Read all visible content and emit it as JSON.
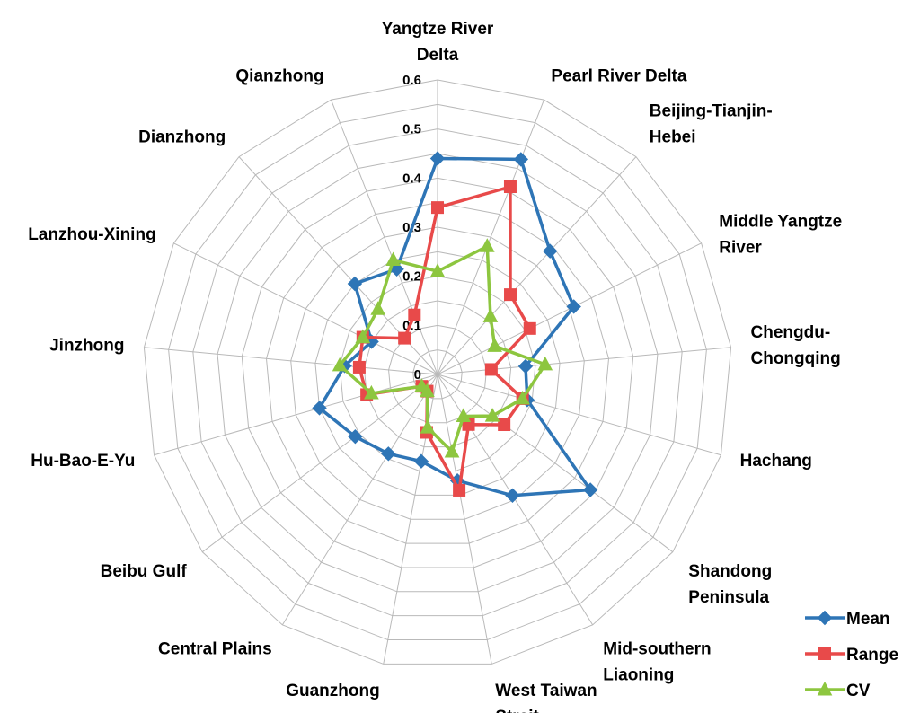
{
  "chart_data": {
    "type": "radar",
    "title": "",
    "categories": [
      "Yangtze River Delta",
      "Pearl River Delta",
      "Beijing-Tianjin-Hebei",
      "Middle Yangtze River",
      "Chengdu-Chongqing",
      "Hachang",
      "Shandong Peninsula",
      "Mid-southern Liaoning",
      "West Taiwan Strait",
      "Guanzhong",
      "Central Plains",
      "Beibu Gulf",
      "Hu-Bao-E-Yu",
      "Jinzhong",
      "Lanzhou-Xining",
      "Dianzhong",
      "Qianzhong"
    ],
    "category_label_lines": [
      [
        "Yangtze River",
        "Delta"
      ],
      [
        "Pearl River Delta"
      ],
      [
        "Beijing-Tianjin-",
        "Hebei"
      ],
      [
        "Middle Yangtze",
        "River"
      ],
      [
        "Chengdu-",
        "Chongqing"
      ],
      [
        "Hachang"
      ],
      [
        "Shandong",
        "Peninsula"
      ],
      [
        "Mid-southern",
        "Liaoning"
      ],
      [
        "West Taiwan",
        "Strait"
      ],
      [
        "Guanzhong"
      ],
      [
        "Central Plains"
      ],
      [
        "Beibu Gulf"
      ],
      [
        "Hu-Bao-E-Yu"
      ],
      [
        "Jinzhong"
      ],
      [
        "Lanzhou-Xining"
      ],
      [
        "Dianzhong"
      ],
      [
        "Qianzhong"
      ]
    ],
    "rlim": [
      0,
      0.6
    ],
    "ticks": [
      "0",
      "0.1",
      "0.2",
      "0.3",
      "0.4",
      "0.5",
      "0.6"
    ],
    "grid": true,
    "legend_position": "bottom-right",
    "series": [
      {
        "name": "Mean",
        "color": "#2E75B6",
        "marker": "diamond",
        "values": [
          0.44,
          0.47,
          0.34,
          0.31,
          0.18,
          0.19,
          0.39,
          0.29,
          0.22,
          0.18,
          0.19,
          0.21,
          0.25,
          0.19,
          0.15,
          0.25,
          0.23
        ]
      },
      {
        "name": "Range",
        "color": "#E84A4A",
        "marker": "square",
        "values": [
          0.34,
          0.41,
          0.22,
          0.21,
          0.11,
          0.18,
          0.17,
          0.12,
          0.24,
          0.12,
          0.04,
          0.04,
          0.15,
          0.16,
          0.17,
          0.1,
          0.13
        ]
      },
      {
        "name": "CV",
        "color": "#8DC63F",
        "marker": "triangle",
        "values": [
          0.21,
          0.28,
          0.16,
          0.13,
          0.22,
          0.18,
          0.14,
          0.1,
          0.16,
          0.11,
          0.04,
          0.04,
          0.14,
          0.2,
          0.17,
          0.18,
          0.25
        ]
      }
    ]
  }
}
